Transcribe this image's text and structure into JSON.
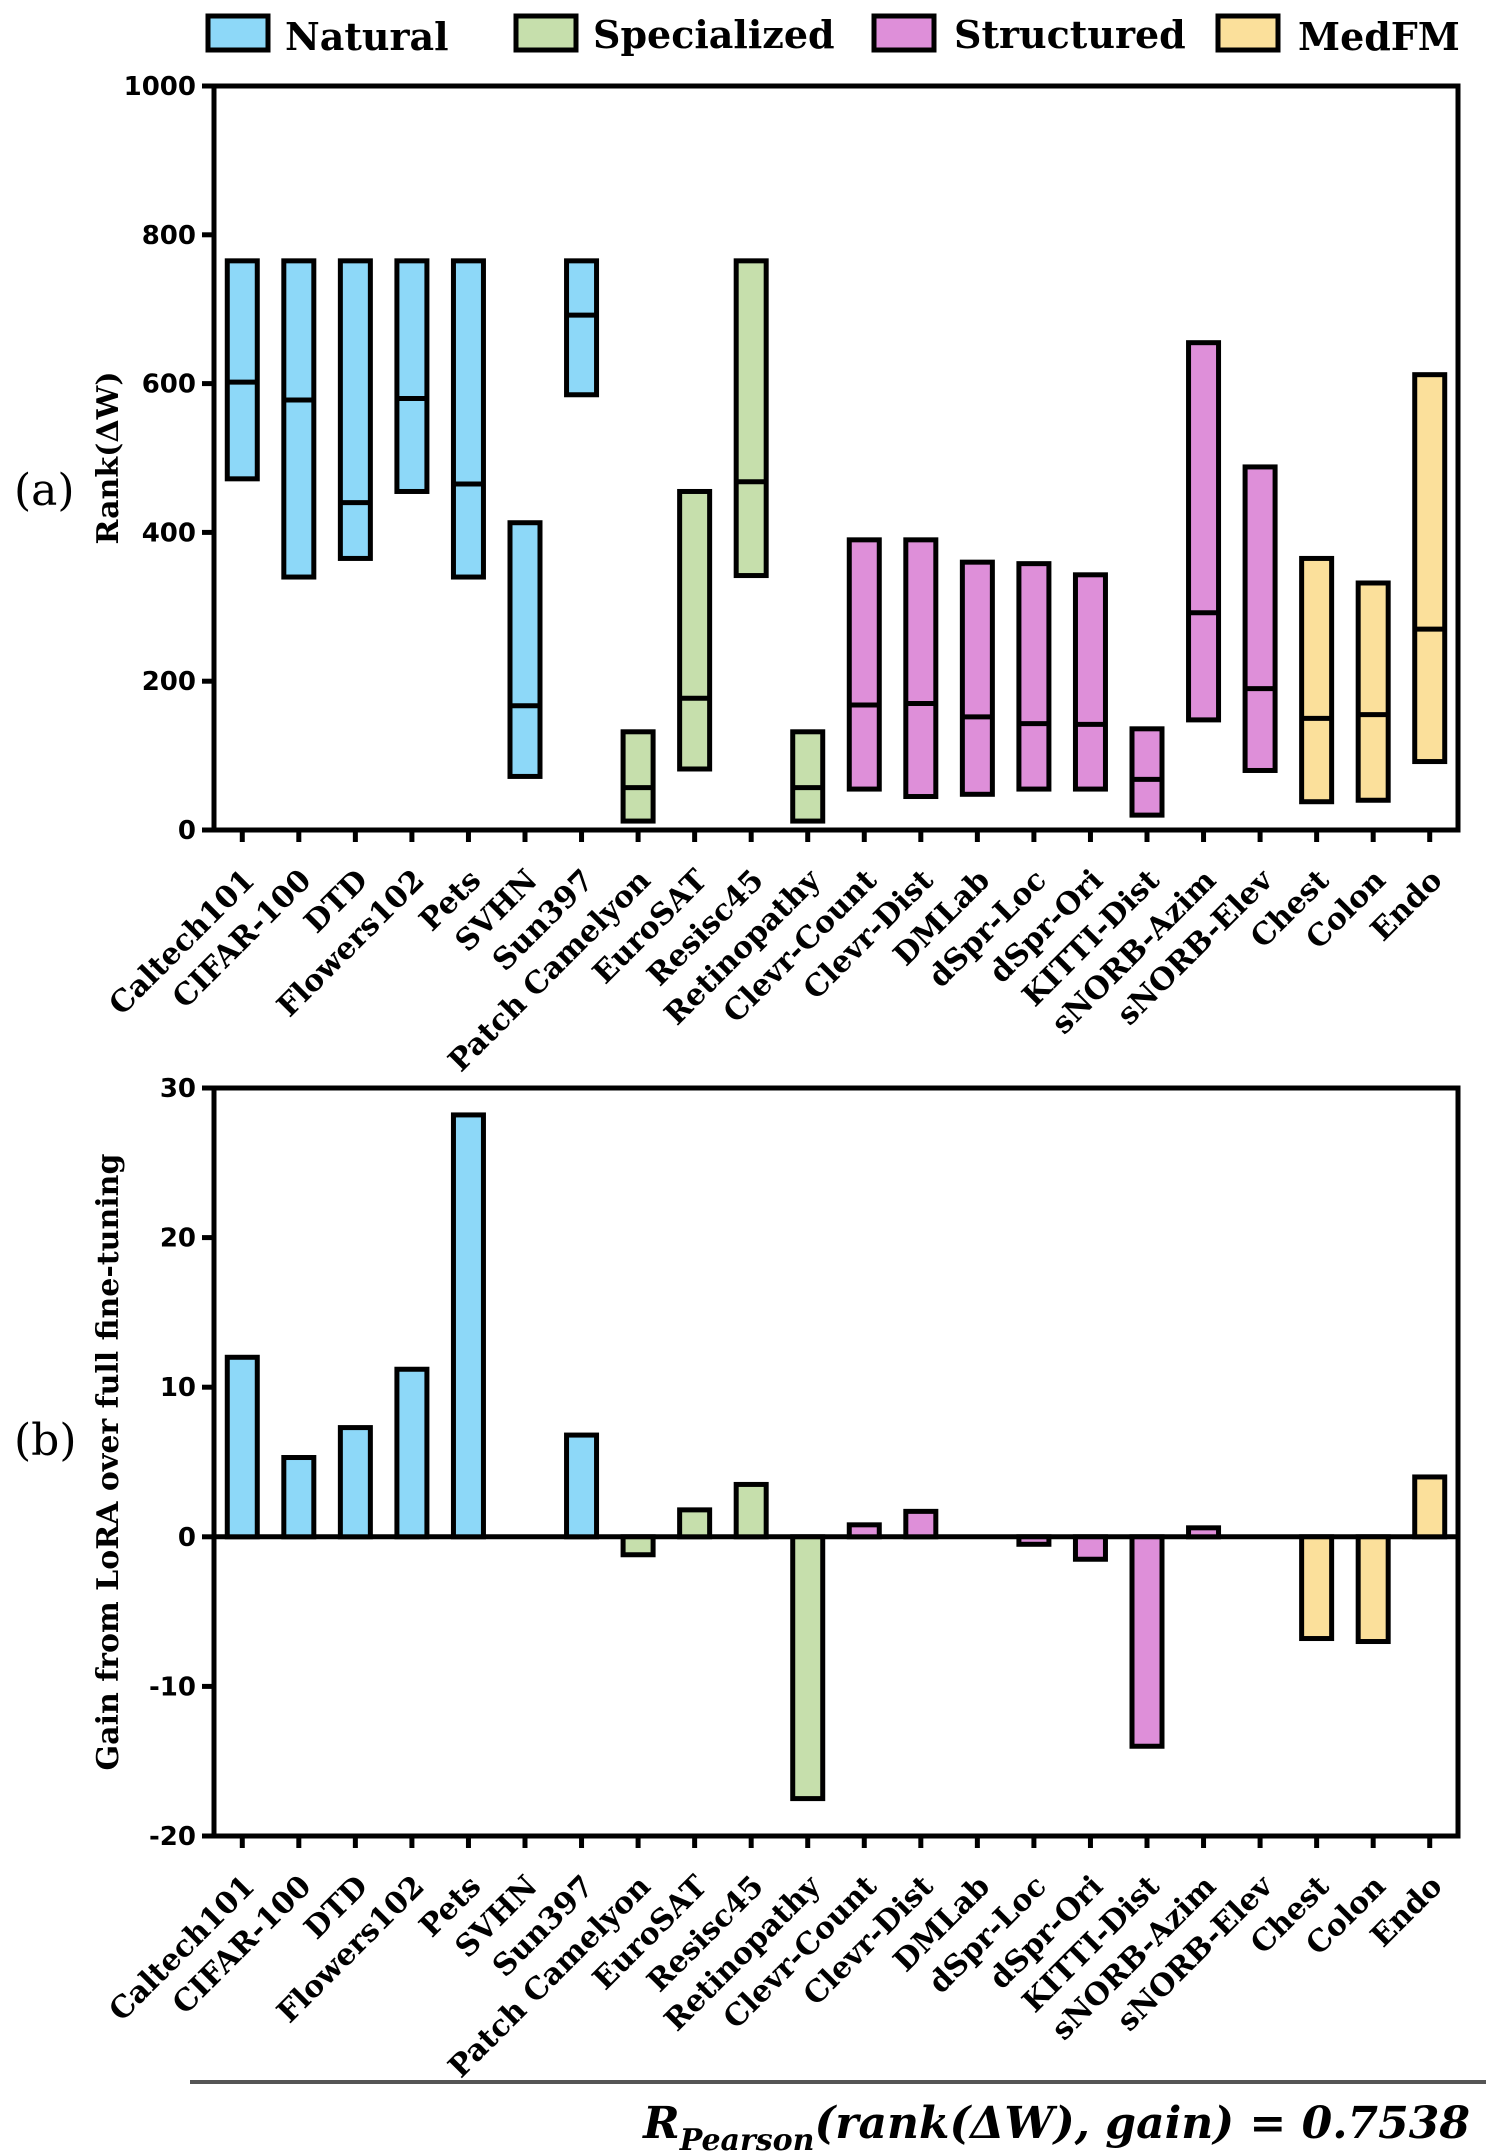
{
  "colors": {
    "Natural": "#8dd8f8",
    "Specialized": "#c6dfac",
    "Structured": "#de8fd9",
    "MedFM": "#fbe09b"
  },
  "legend": [
    {
      "label": "Natural",
      "group": "Natural"
    },
    {
      "label": "Specialized",
      "group": "Specialized"
    },
    {
      "label": "Structured",
      "group": "Structured"
    },
    {
      "label": "MedFM",
      "group": "MedFM"
    }
  ],
  "panels": {
    "a": "(a)",
    "b": "(b)"
  },
  "formula": {
    "R": "R",
    "sub": "Pearson",
    "body": "(rank(ΔW), gain) = 0.7538"
  },
  "chart_data": [
    {
      "type": "box",
      "panel": "(a)",
      "title": "",
      "xlabel": "",
      "ylabel": "Rank(ΔW)",
      "ylim": [
        0,
        1000
      ],
      "yticks": [
        0,
        200,
        400,
        600,
        800,
        1000
      ],
      "categories": [
        "Caltech101",
        "CIFAR-100",
        "DTD",
        "Flowers102",
        "Pets",
        "SVHN",
        "Sun397",
        "Patch Camelyon",
        "EuroSAT",
        "Resisc45",
        "Retinopathy",
        "Clevr-Count",
        "Clevr-Dist",
        "DMLab",
        "dSpr-Loc",
        "dSpr-Ori",
        "KITTI-Dist",
        "sNORB-Azim",
        "sNORB-Elev",
        "Chest",
        "Colon",
        "Endo"
      ],
      "groups": [
        "Natural",
        "Natural",
        "Natural",
        "Natural",
        "Natural",
        "Natural",
        "Natural",
        "Specialized",
        "Specialized",
        "Specialized",
        "Specialized",
        "Structured",
        "Structured",
        "Structured",
        "Structured",
        "Structured",
        "Structured",
        "Structured",
        "Structured",
        "MedFM",
        "MedFM",
        "MedFM"
      ],
      "min": [
        472,
        340,
        365,
        455,
        340,
        72,
        585,
        12,
        82,
        342,
        12,
        55,
        45,
        48,
        55,
        55,
        20,
        148,
        80,
        38,
        40,
        92
      ],
      "median": [
        602,
        578,
        440,
        580,
        465,
        167,
        692,
        57,
        177,
        468,
        57,
        168,
        170,
        152,
        143,
        142,
        68,
        292,
        190,
        150,
        155,
        270
      ],
      "max": [
        765,
        765,
        765,
        765,
        765,
        413,
        765,
        132,
        455,
        765,
        132,
        390,
        390,
        360,
        358,
        343,
        136,
        655,
        488,
        365,
        332,
        612
      ]
    },
    {
      "type": "bar",
      "panel": "(b)",
      "title": "",
      "xlabel": "",
      "ylabel": "Gain from LoRA over full fine-tuning",
      "ylim": [
        -20,
        30
      ],
      "yticks": [
        -20,
        -10,
        0,
        10,
        20,
        30
      ],
      "categories": [
        "Caltech101",
        "CIFAR-100",
        "DTD",
        "Flowers102",
        "Pets",
        "SVHN",
        "Sun397",
        "Patch Camelyon",
        "EuroSAT",
        "Resisc45",
        "Retinopathy",
        "Clevr-Count",
        "Clevr-Dist",
        "DMLab",
        "dSpr-Loc",
        "dSpr-Ori",
        "KITTI-Dist",
        "sNORB-Azim",
        "sNORB-Elev",
        "Chest",
        "Colon",
        "Endo"
      ],
      "groups": [
        "Natural",
        "Natural",
        "Natural",
        "Natural",
        "Natural",
        "Natural",
        "Natural",
        "Specialized",
        "Specialized",
        "Specialized",
        "Specialized",
        "Structured",
        "Structured",
        "Structured",
        "Structured",
        "Structured",
        "Structured",
        "Structured",
        "Structured",
        "MedFM",
        "MedFM",
        "MedFM"
      ],
      "values": [
        12.0,
        5.3,
        7.3,
        11.2,
        28.2,
        0,
        6.8,
        -1.2,
        1.8,
        3.5,
        -17.5,
        0.8,
        1.7,
        0,
        -0.5,
        -1.5,
        -14.0,
        0.6,
        0,
        -6.8,
        -7.0,
        4.0
      ]
    }
  ]
}
